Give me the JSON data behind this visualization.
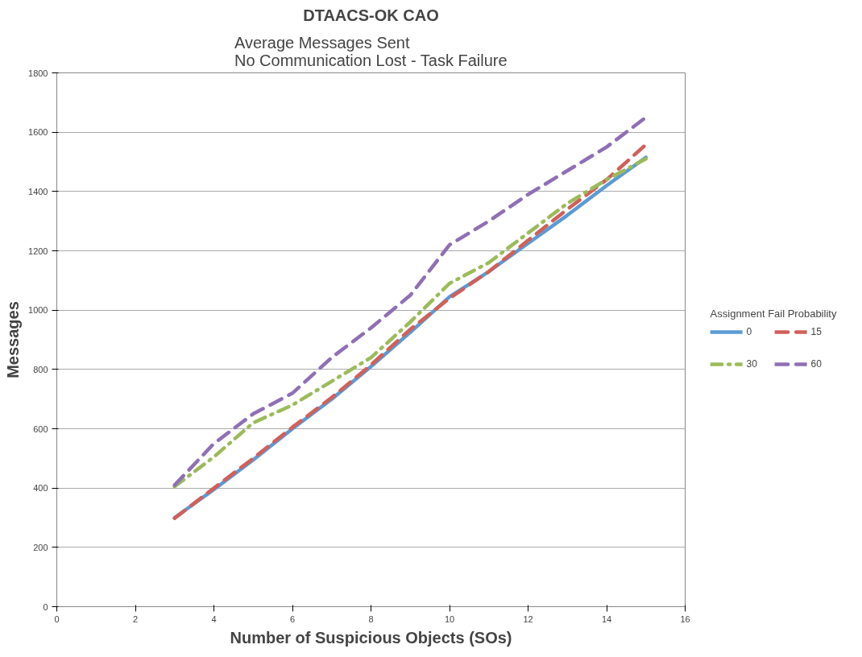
{
  "chart_data": {
    "type": "line",
    "title": "DTAACS-OK CAO",
    "subtitle": "Average Messages Sent\nNo Communication Lost - Task Failure",
    "xlabel": "Number of Suspicious Objects (SOs)",
    "ylabel": "Messages",
    "legend_title": "Assignment Fail Probability",
    "x": [
      3,
      4,
      5,
      6,
      7,
      8,
      9,
      10,
      11,
      12,
      13,
      14,
      15
    ],
    "series": [
      {
        "name": "0",
        "color": "#5b9bd5",
        "line_style": "solid",
        "values": [
          300,
          395,
          495,
          600,
          700,
          810,
          925,
          1045,
          1130,
          1225,
          1320,
          1420,
          1515
        ]
      },
      {
        "name": "15",
        "color": "#d0605a",
        "line_style": "dashed",
        "values": [
          298,
          400,
          500,
          605,
          705,
          815,
          935,
          1040,
          1130,
          1235,
          1340,
          1440,
          1558
        ]
      },
      {
        "name": "30",
        "color": "#9bbb59",
        "line_style": "dashdot",
        "values": [
          405,
          505,
          620,
          680,
          760,
          840,
          960,
          1090,
          1160,
          1260,
          1360,
          1440,
          1510
        ]
      },
      {
        "name": "60",
        "color": "#8f6fb5",
        "line_style": "dashed",
        "values": [
          410,
          550,
          650,
          720,
          840,
          940,
          1050,
          1220,
          1300,
          1390,
          1470,
          1550,
          1650
        ]
      }
    ],
    "xlim": [
      0,
      16
    ],
    "xticks": [
      0,
      2,
      4,
      6,
      8,
      10,
      12,
      14,
      16
    ],
    "ylim": [
      0,
      1800
    ],
    "yticks": [
      0,
      200,
      400,
      600,
      800,
      1000,
      1200,
      1400,
      1600,
      1800
    ],
    "grid": "y",
    "legend": "right",
    "marker": "none"
  }
}
